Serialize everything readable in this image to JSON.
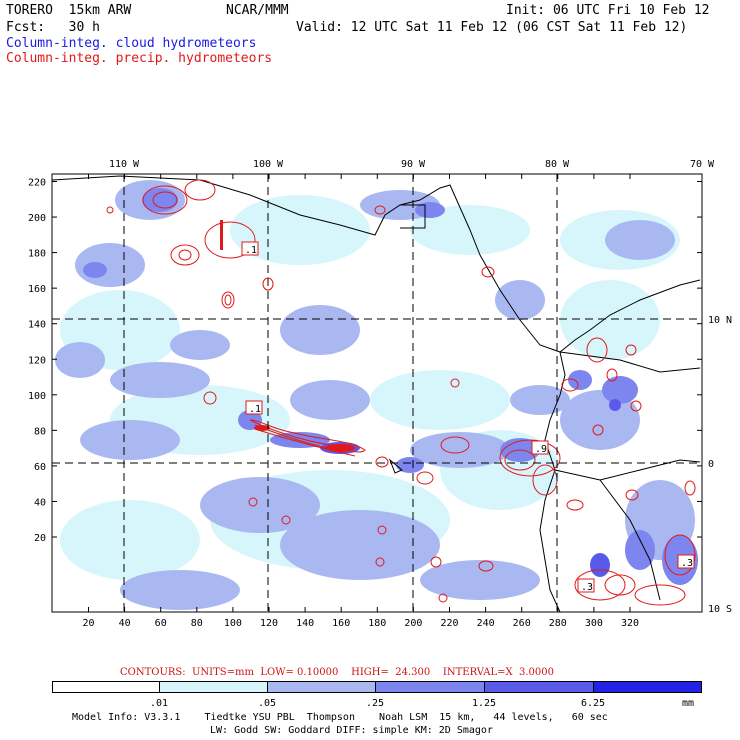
{
  "header": {
    "model": "TORERO  15km ARW",
    "center": "NCAR/MMM",
    "init": "Init: 06 UTC Fri 10 Feb 12",
    "fcst": "Fcst:   30 h",
    "valid": "Valid: 12 UTC Sat 11 Feb 12 (06 CST Sat 11 Feb 12)",
    "field_cloud": "Column-integ. cloud hydrometeors",
    "field_precip": "Column-integ. precip. hydrometeors"
  },
  "axes": {
    "top_lon_labels": [
      "110 W",
      "100 W",
      "90 W",
      "80 W",
      "70 W"
    ],
    "left_y_labels": [
      "220",
      "200",
      "180",
      "160",
      "140",
      "120",
      "100",
      "80",
      "60",
      "40",
      "20"
    ],
    "bottom_x_labels": [
      "20",
      "40",
      "60",
      "80",
      "100",
      "120",
      "140",
      "160",
      "180",
      "200",
      "220",
      "240",
      "260",
      "280",
      "300",
      "320"
    ],
    "right_lat_labels": [
      "10 N",
      "0",
      "10 S"
    ]
  },
  "contour_info": {
    "label": "CONTOURS:  UNITS=mm  LOW= 0.10000    HIGH=  24.300    INTERVAL=X  3.0000"
  },
  "colorbar": {
    "labels": [
      ".01",
      ".05",
      ".25",
      "1.25",
      "6.25"
    ],
    "unit": "mm",
    "colors": [
      "#ffffff",
      "#d6f6fb",
      "#aab8f2",
      "#7d86ee",
      "#5a5aea",
      "#2222e6"
    ]
  },
  "box_labels": [
    ".1",
    ".1",
    ".9",
    ".3",
    ".3"
  ],
  "footer": {
    "line1": "Model Info: V3.3.1    Tiedtke YSU PBL  Thompson    Noah LSM  15 km,   44 levels,   60 sec",
    "line2": "LW: Godd SW: Goddard DIFF: simple KM: 2D Smagor"
  }
}
